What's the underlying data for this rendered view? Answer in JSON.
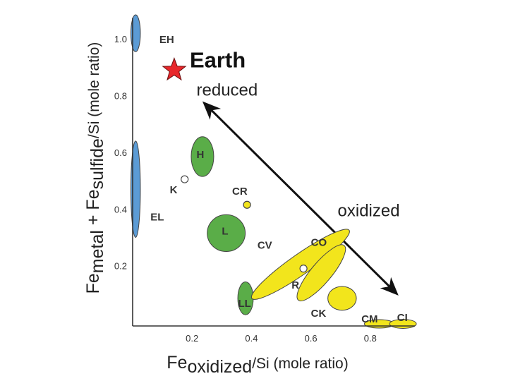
{
  "chart_data": {
    "type": "scatter",
    "title": "",
    "xlabel": {
      "main": "Fe",
      "sub": "oxidized",
      "tail": "/Si  (mole ratio)"
    },
    "ylabel": {
      "main1": "Fe",
      "sub1": "metal",
      "mid": " + Fe",
      "sub2": "sulfide",
      "tail": "/Si  (mole ratio)"
    },
    "xlim": [
      0,
      0.95
    ],
    "ylim": [
      0,
      1.1
    ],
    "x_ticks": [
      "0.2",
      "0.4",
      "0.6",
      "0.8"
    ],
    "x_tick_values": [
      0.2,
      0.4,
      0.6,
      0.8
    ],
    "y_ticks": [
      "0.2",
      "0.4",
      "0.6",
      "0.8",
      "1.0"
    ],
    "y_tick_values": [
      0.2,
      0.4,
      0.6,
      0.8,
      1.0
    ],
    "grid": false,
    "earth": {
      "label": "Earth",
      "x": 0.14,
      "y": 0.89,
      "color": "#e8272b"
    },
    "groups": [
      {
        "name": "EH",
        "x": 0.01,
        "y": 1.02,
        "rx": 0.016,
        "ry": 0.065,
        "angle": 0,
        "color": "#5b9bd5",
        "label_x": 0.09,
        "label_y": 0.985
      },
      {
        "name": "EL",
        "x": 0.01,
        "y": 0.47,
        "rx": 0.016,
        "ry": 0.17,
        "angle": 0,
        "color": "#5b9bd5",
        "label_x": 0.06,
        "label_y": 0.36
      },
      {
        "name": "H",
        "x": 0.235,
        "y": 0.585,
        "rx": 0.038,
        "ry": 0.07,
        "angle": 0,
        "color": "#5aad48",
        "label_x": 0.215,
        "label_y": 0.58
      },
      {
        "name": "L",
        "x": 0.315,
        "y": 0.315,
        "rx": 0.064,
        "ry": 0.065,
        "angle": 0,
        "color": "#5aad48",
        "label_x": 0.3,
        "label_y": 0.31
      },
      {
        "name": "LL",
        "x": 0.38,
        "y": 0.085,
        "rx": 0.026,
        "ry": 0.058,
        "angle": 0,
        "color": "#5aad48",
        "label_x": 0.355,
        "label_y": 0.055
      },
      {
        "name": "CV",
        "x": 0.565,
        "y": 0.205,
        "rx": 0.2,
        "ry": 0.036,
        "angle": -35,
        "color": "#f2e51c",
        "label_x": 0.42,
        "label_y": 0.26
      },
      {
        "name": "CO",
        "x": 0.635,
        "y": 0.175,
        "rx": 0.12,
        "ry": 0.036,
        "angle": -50,
        "color": "#f2e51c",
        "label_x": 0.6,
        "label_y": 0.27
      },
      {
        "name": "CK",
        "x": 0.705,
        "y": 0.085,
        "rx": 0.048,
        "ry": 0.042,
        "angle": 0,
        "color": "#f2e51c",
        "label_x": 0.6,
        "label_y": 0.02
      },
      {
        "name": "CM",
        "x": 0.83,
        "y": -0.005,
        "rx": 0.05,
        "ry": 0.015,
        "angle": 0,
        "color": "#f2e51c",
        "label_x": 0.77,
        "label_y": 0.0
      },
      {
        "name": "CI",
        "x": 0.91,
        "y": -0.005,
        "rx": 0.045,
        "ry": 0.016,
        "angle": 0,
        "color": "#f2e51c",
        "label_x": 0.89,
        "label_y": 0.005
      }
    ],
    "points": [
      {
        "name": "K",
        "x": 0.175,
        "y": 0.505,
        "color": "#ffffff",
        "label_x": 0.125,
        "label_y": 0.455
      },
      {
        "name": "CR",
        "x": 0.385,
        "y": 0.415,
        "color": "#f2e51c",
        "label_x": 0.335,
        "label_y": 0.45
      },
      {
        "name": "R",
        "x": 0.575,
        "y": 0.19,
        "color": "#ffffff",
        "label_x": 0.535,
        "label_y": 0.12
      }
    ],
    "arrow": {
      "x1": 0.235,
      "y1": 0.78,
      "x2": 0.895,
      "y2": 0.095,
      "color": "#111111"
    },
    "annotations": [
      {
        "text": "reduced",
        "x": 0.215,
        "y": 0.8
      },
      {
        "text": "oxidized",
        "x": 0.69,
        "y": 0.375
      }
    ]
  }
}
